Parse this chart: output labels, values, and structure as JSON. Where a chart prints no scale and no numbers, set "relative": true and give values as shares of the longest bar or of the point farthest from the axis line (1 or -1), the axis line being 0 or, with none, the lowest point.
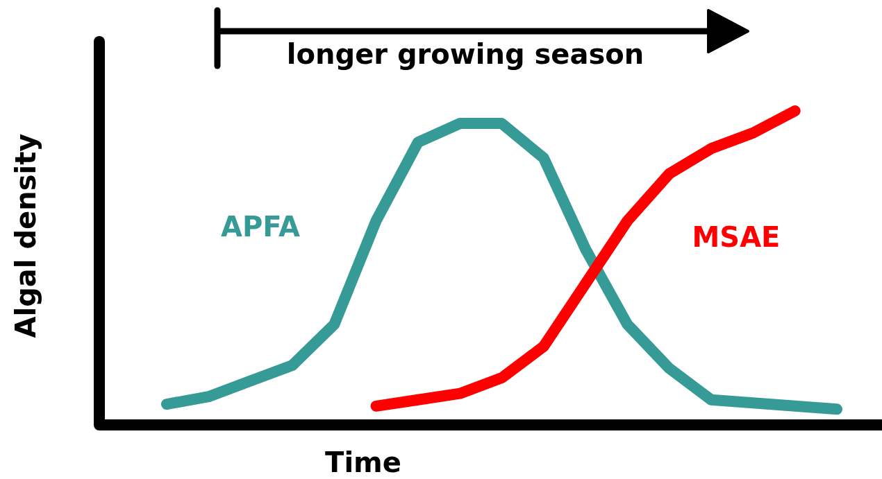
{
  "chart_data": {
    "type": "line",
    "relative": true,
    "xlabel": "Time",
    "ylabel": "Algal density",
    "annotations": [
      "longer growing season"
    ],
    "categories": [
      null,
      null,
      null,
      null,
      null,
      null,
      null,
      null,
      null,
      null,
      null,
      null,
      null,
      null,
      null,
      null,
      null
    ],
    "line_style": "solid",
    "marker": "none",
    "series": [
      {
        "name": "APFA",
        "color": "#369a96",
        "values": [
          0.066,
          0.09,
          0.14,
          0.19,
          0.32,
          0.65,
          0.9,
          0.96,
          0.96,
          0.85,
          0.56,
          0.32,
          0.18,
          0.08,
          0.07,
          0.06,
          0.05
        ]
      },
      {
        "name": "MSAE",
        "color": "#ff0000",
        "values": [
          null,
          null,
          null,
          null,
          null,
          0.06,
          0.08,
          0.1,
          0.15,
          0.25,
          0.45,
          0.65,
          0.8,
          0.88,
          0.93,
          1.0,
          null
        ]
      }
    ]
  }
}
